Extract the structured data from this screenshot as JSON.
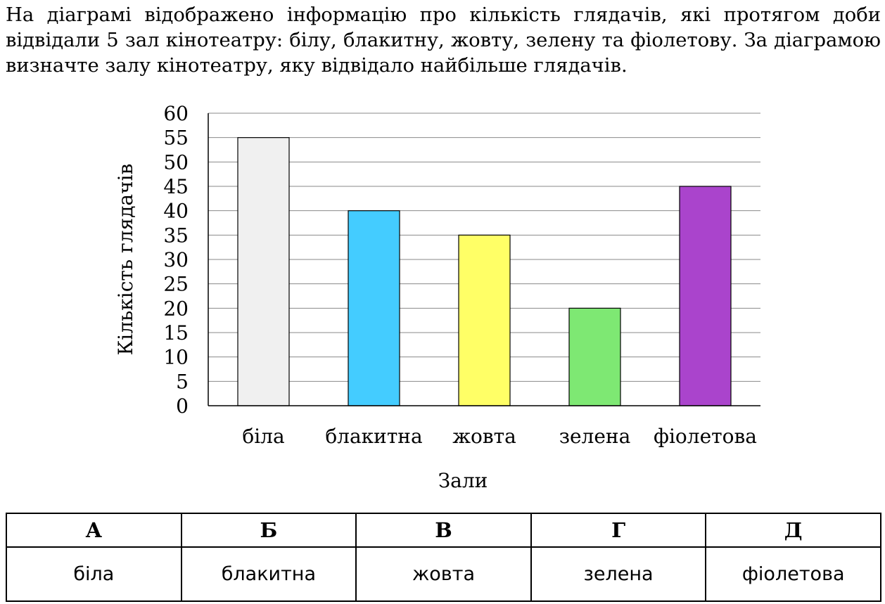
{
  "question": {
    "text": "На діаграмі відображено інформацію про кількість глядачів, які протягом доби відвідали 5 зал кінотеатру: білу, блакитну, жовту, зелену та фіолетову. За діаграмою визначте залу кінотеатру, яку відвідало найбільше глядачів."
  },
  "chart_data": {
    "type": "bar",
    "categories": [
      "біла",
      "блакитна",
      "жовта",
      "зелена",
      "фіолетова"
    ],
    "values": [
      55,
      40,
      35,
      20,
      45
    ],
    "colors": [
      "#f0f0f0",
      "#44ccff",
      "#ffff66",
      "#7ee873",
      "#aa44cc"
    ],
    "title": "",
    "xlabel": "Зали",
    "ylabel": "Кількість глядачів",
    "ylim": [
      0,
      60
    ],
    "yticks": [
      0,
      5,
      10,
      15,
      20,
      25,
      30,
      35,
      40,
      45,
      50,
      55,
      60
    ],
    "grid": true
  },
  "answers": {
    "letters": [
      "А",
      "Б",
      "В",
      "Г",
      "Д"
    ],
    "options": [
      "біла",
      "блакитна",
      "жовта",
      "зелена",
      "фіолетова"
    ]
  }
}
